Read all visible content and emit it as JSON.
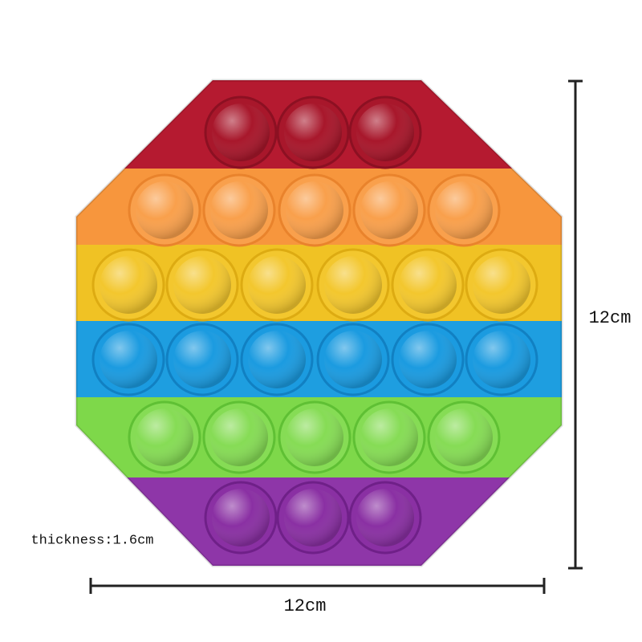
{
  "dimensions": {
    "height_label": "12cm",
    "width_label": "12cm",
    "thickness_label": "thickness:1.6cm"
  }
}
